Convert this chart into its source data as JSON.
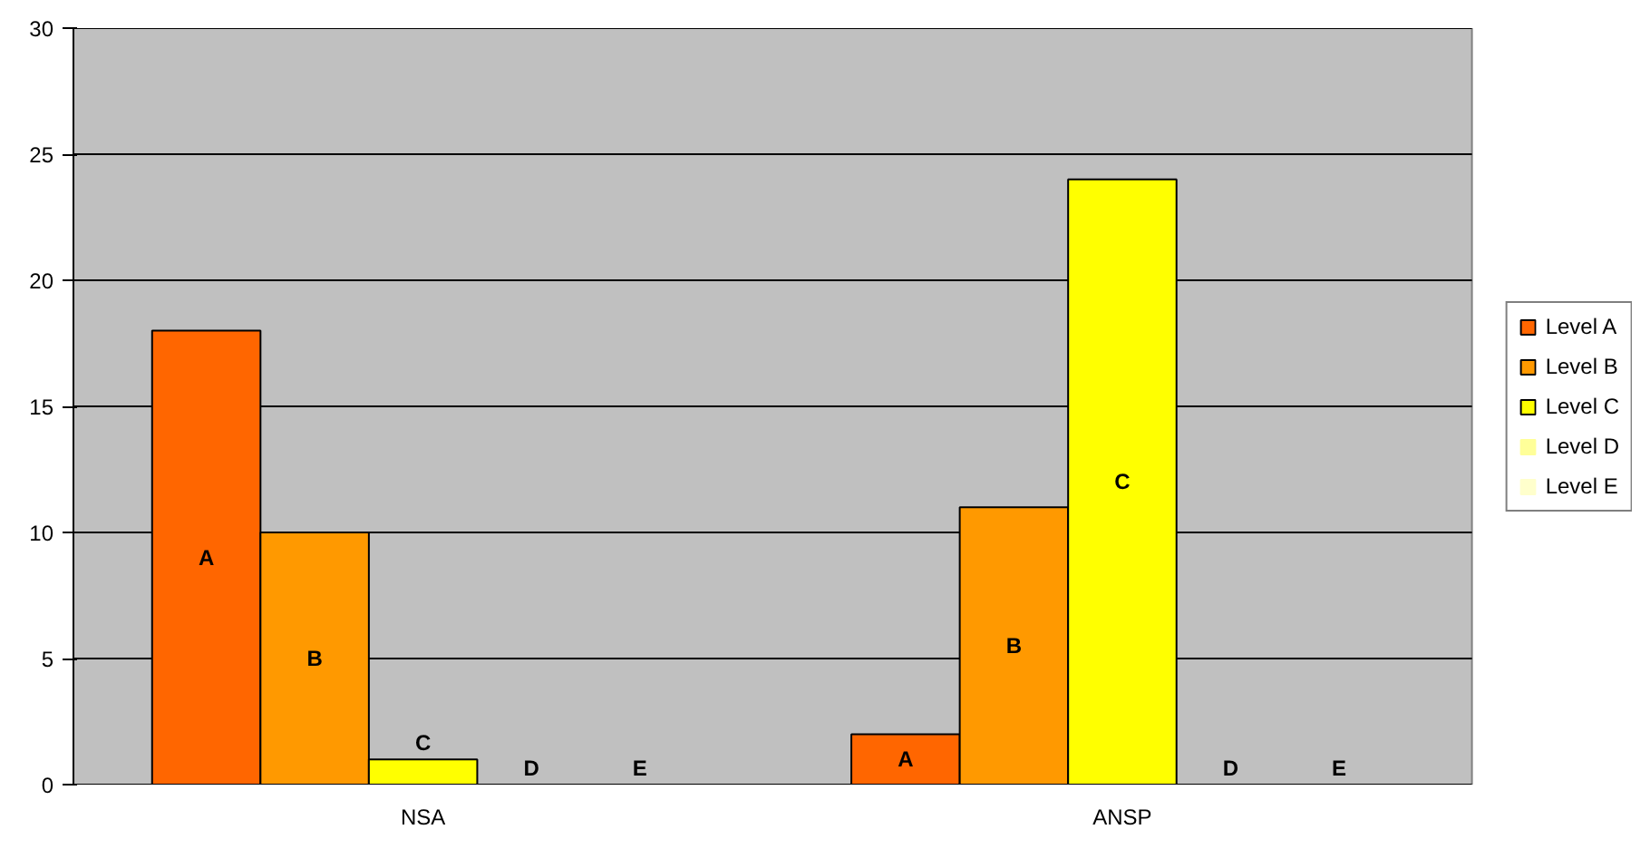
{
  "chart_data": {
    "type": "bar",
    "categories": [
      "NSA",
      "ANSP"
    ],
    "series": [
      {
        "name": "Level A",
        "color": "#ff6600",
        "values": [
          18,
          2
        ],
        "value_labels": [
          "A",
          "A"
        ]
      },
      {
        "name": "Level B",
        "color": "#ff9900",
        "values": [
          10,
          11
        ],
        "value_labels": [
          "B",
          "B"
        ]
      },
      {
        "name": "Level C",
        "color": "#ffff00",
        "values": [
          1,
          24
        ],
        "value_labels": [
          "C",
          "C"
        ]
      },
      {
        "name": "Level D",
        "color": "#ffff99",
        "values": [
          0,
          0
        ],
        "value_labels": [
          "D",
          "D"
        ]
      },
      {
        "name": "Level E",
        "color": "#ffffcc",
        "values": [
          0,
          0
        ],
        "value_labels": [
          "E",
          "E"
        ]
      }
    ],
    "ylim": [
      0,
      30
    ],
    "yticks": [
      0,
      5,
      10,
      15,
      20,
      25,
      30
    ],
    "grid": "y",
    "legend": "right"
  }
}
